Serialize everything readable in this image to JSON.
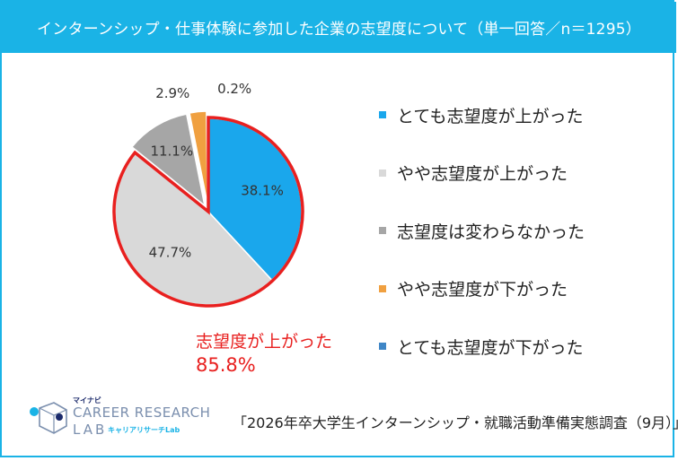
{
  "title": "インターンシップ・仕事体験に参加した企業の志望度について（単一回答／n＝1295）",
  "chart_data": {
    "type": "pie",
    "categories": [
      "とても志望度が上がった",
      "やや志望度が上がった",
      "志望度は変わらなかった",
      "やや志望度が下がった",
      "とても志望度が下がった"
    ],
    "values": [
      38.1,
      47.7,
      11.1,
      2.9,
      0.2
    ],
    "value_labels": [
      "38.1%",
      "47.7%",
      "11.1%",
      "2.9%",
      "0.2%"
    ],
    "colors": [
      "#1aa7ec",
      "#d9d9d9",
      "#a6a6a6",
      "#f0a040",
      "#3f86c6"
    ],
    "legend_position": "right",
    "highlight": {
      "slices": [
        0,
        1
      ],
      "color": "#e8201f",
      "label": "志望度が上がった",
      "value": "85.8%"
    }
  },
  "logo": {
    "small": "マイナビ",
    "main": "CAREER RESEARCH",
    "lab": "LAB",
    "kana": "キャリアリサーチLab"
  },
  "source": "「2026年卒大学生インターンシップ・就職活動準備実態調査（9月）」"
}
